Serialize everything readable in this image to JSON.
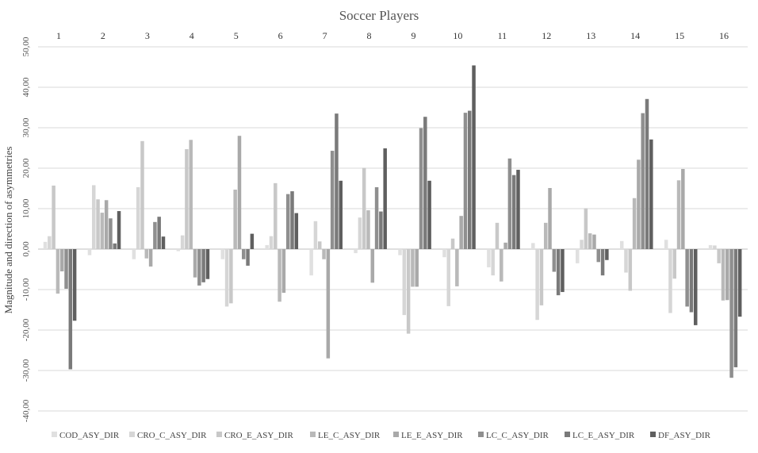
{
  "chart_data": {
    "type": "bar",
    "title": "Soccer Players",
    "xlabel": "",
    "ylabel": "Magnitude and direction of asymmetries",
    "ylim": [
      -40,
      50
    ],
    "yticks": [
      "-40,00",
      "-30,00",
      "-20,00",
      "-10,00",
      "0,00",
      "10,00",
      "20,00",
      "30,00",
      "40,00",
      "50,00"
    ],
    "grid": true,
    "legend_position": "bottom",
    "category_axis_position": "top",
    "categories": [
      "1",
      "2",
      "3",
      "4",
      "5",
      "6",
      "7",
      "8",
      "9",
      "10",
      "11",
      "12",
      "13",
      "14",
      "15",
      "16"
    ],
    "series": [
      {
        "name": "COD_ASY_DIR",
        "color": "#e0e0e0",
        "values": [
          1.8,
          -1.5,
          -2.5,
          -0.5,
          -2.5,
          1.0,
          -6.5,
          -1.0,
          -1.5,
          -2.0,
          -4.5,
          1.5,
          -3.5,
          2.0,
          2.3,
          1.0
        ]
      },
      {
        "name": "CRO_C_ASY_DIR",
        "color": "#d6d6d6",
        "values": [
          3.2,
          15.8,
          15.3,
          3.4,
          -14.2,
          3.2,
          6.9,
          7.8,
          -16.3,
          -14.1,
          -6.5,
          -17.5,
          2.3,
          -5.8,
          -15.8,
          0.9
        ]
      },
      {
        "name": "CRO_E_ASY_DIR",
        "color": "#c8c8c8",
        "values": [
          15.7,
          12.3,
          26.7,
          24.7,
          -13.4,
          16.3,
          1.9,
          20.1,
          -20.9,
          2.6,
          6.5,
          -13.9,
          10.1,
          -10.3,
          -7.3,
          -3.5
        ]
      },
      {
        "name": "LE_C_ASY_DIR",
        "color": "#b9b9b9",
        "values": [
          -11.0,
          9.0,
          -2.3,
          27.0,
          14.7,
          -13.0,
          -2.5,
          9.6,
          -9.3,
          -9.2,
          -8.0,
          6.5,
          3.9,
          12.6,
          17.0,
          -12.7
        ]
      },
      {
        "name": "LE_E_ASY_DIR",
        "color": "#a9a9a9",
        "values": [
          -5.5,
          12.1,
          -4.3,
          -7.0,
          28.0,
          -10.8,
          -27.0,
          -8.3,
          -9.3,
          8.2,
          1.6,
          15.1,
          3.6,
          22.1,
          19.8,
          -12.6
        ]
      },
      {
        "name": "LC_C_ASY_DIR",
        "color": "#8f8f8f",
        "values": [
          -9.8,
          7.6,
          6.7,
          -9.0,
          -2.5,
          13.6,
          24.3,
          15.3,
          29.9,
          33.7,
          22.4,
          -5.6,
          -3.2,
          33.6,
          -14.2,
          -31.8
        ]
      },
      {
        "name": "LC_E_ASY_DIR",
        "color": "#7a7a7a",
        "values": [
          -29.7,
          1.4,
          8.0,
          -8.2,
          -4.1,
          14.3,
          33.5,
          9.3,
          32.7,
          34.2,
          18.3,
          -11.4,
          -6.5,
          37.1,
          -15.6,
          -29.2
        ]
      },
      {
        "name": "DF_ASY_DIR",
        "color": "#5f5f5f",
        "values": [
          -17.7,
          9.4,
          3.1,
          -7.4,
          3.8,
          8.9,
          16.9,
          24.9,
          16.9,
          45.4,
          19.6,
          -10.6,
          -2.7,
          27.1,
          -18.8,
          -16.7
        ]
      }
    ]
  }
}
